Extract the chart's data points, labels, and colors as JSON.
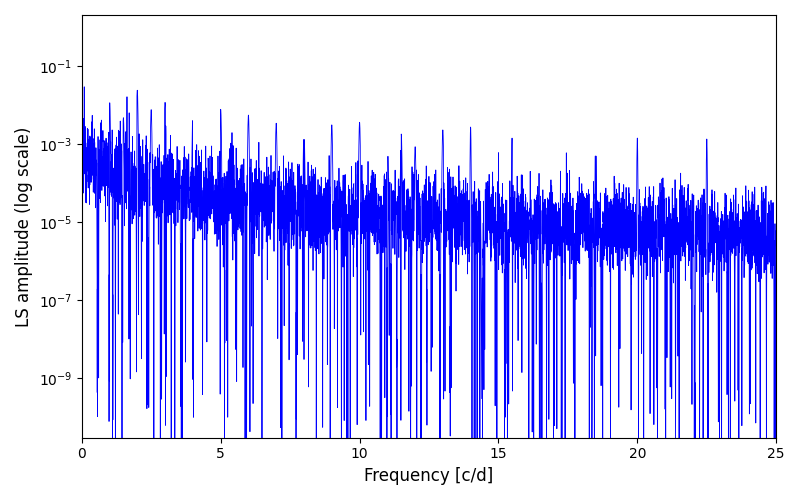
{
  "title": "",
  "xlabel": "Frequency [c/d]",
  "ylabel": "LS amplitude (log scale)",
  "line_color": "#0000ff",
  "line_width": 0.6,
  "xlim": [
    0,
    25
  ],
  "ylim": [
    3e-11,
    2.0
  ],
  "background_color": "#ffffff",
  "figsize": [
    8.0,
    5.0
  ],
  "dpi": 100,
  "seed": 12345,
  "n_points": 6000,
  "freq_max": 25.0,
  "yticks": [
    1e-09,
    1e-07,
    1e-05,
    0.001,
    0.1
  ],
  "xticks": [
    0,
    5,
    10,
    15,
    20,
    25
  ]
}
